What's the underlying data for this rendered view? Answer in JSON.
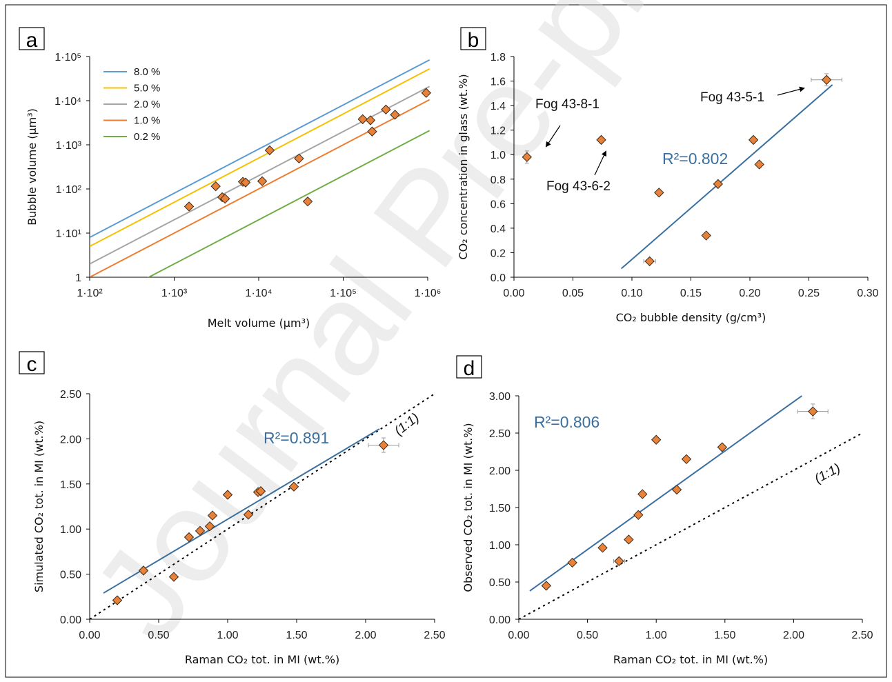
{
  "figure": {
    "watermark": "Journal Pre-proof",
    "colors": {
      "point_fill": "#e8823a",
      "fit_line": "#3a6f9f",
      "r2_text": "#3a6f9f",
      "one_to_one": "#000000"
    }
  },
  "chart_data": [
    {
      "panel": "a",
      "type": "scatter",
      "xlabel": "Melt volume (µm³)",
      "ylabel": "Bubble volume (µm³)",
      "xscale": "log",
      "yscale": "log",
      "xlim": [
        100,
        1000000
      ],
      "ylim": [
        1,
        100000
      ],
      "xticks": [
        {
          "v": 100,
          "label": "1·10²"
        },
        {
          "v": 1000,
          "label": "1·10³"
        },
        {
          "v": 10000,
          "label": "1·10⁴"
        },
        {
          "v": 100000,
          "label": "1·10⁵"
        },
        {
          "v": 1000000,
          "label": "1·10⁶"
        }
      ],
      "yticks": [
        {
          "v": 1,
          "label": "1"
        },
        {
          "v": 10,
          "label": "1·10¹"
        },
        {
          "v": 100,
          "label": "1·10²"
        },
        {
          "v": 1000,
          "label": "1·10³"
        },
        {
          "v": 10000,
          "label": "1·10⁴"
        },
        {
          "v": 100000,
          "label": "1·10⁵"
        }
      ],
      "legend_position": "top-left",
      "lines": [
        {
          "name": "8.0 %",
          "fraction": 0.08,
          "color": "#5b9bd5"
        },
        {
          "name": "5.0 %",
          "fraction": 0.05,
          "color": "#f5c000"
        },
        {
          "name": "2.0 %",
          "fraction": 0.02,
          "color": "#a5a5a5"
        },
        {
          "name": "1.0 %",
          "fraction": 0.01,
          "color": "#ed7d31"
        },
        {
          "name": "0.2 %",
          "fraction": 0.002,
          "color": "#70ad47"
        }
      ],
      "points": [
        {
          "x": 1500,
          "y": 40
        },
        {
          "x": 3100,
          "y": 115
        },
        {
          "x": 3700,
          "y": 65
        },
        {
          "x": 4000,
          "y": 60
        },
        {
          "x": 6500,
          "y": 145
        },
        {
          "x": 7000,
          "y": 140
        },
        {
          "x": 11000,
          "y": 150
        },
        {
          "x": 13500,
          "y": 750
        },
        {
          "x": 30000,
          "y": 490
        },
        {
          "x": 38000,
          "y": 52
        },
        {
          "x": 170000,
          "y": 3800
        },
        {
          "x": 210000,
          "y": 3600
        },
        {
          "x": 220000,
          "y": 2000
        },
        {
          "x": 320000,
          "y": 6300
        },
        {
          "x": 410000,
          "y": 4800
        },
        {
          "x": 960000,
          "y": 15000
        }
      ]
    },
    {
      "panel": "b",
      "type": "scatter",
      "xlabel": "CO₂ bubble density (g/cm³)",
      "ylabel": "CO₂ concentration in glass (wt.%)",
      "xlim": [
        0,
        0.3
      ],
      "ylim": [
        0,
        1.8
      ],
      "xticks": [
        {
          "v": 0,
          "label": "0.00"
        },
        {
          "v": 0.05,
          "label": "0.05"
        },
        {
          "v": 0.1,
          "label": "0.10"
        },
        {
          "v": 0.15,
          "label": "0.15"
        },
        {
          "v": 0.2,
          "label": "0.20"
        },
        {
          "v": 0.25,
          "label": "0.25"
        },
        {
          "v": 0.3,
          "label": "0.30"
        }
      ],
      "yticks": [
        {
          "v": 0,
          "label": "0.0"
        },
        {
          "v": 0.2,
          "label": "0.2"
        },
        {
          "v": 0.4,
          "label": "0.4"
        },
        {
          "v": 0.6,
          "label": "0.6"
        },
        {
          "v": 0.8,
          "label": "0.8"
        },
        {
          "v": 1.0,
          "label": "1.0"
        },
        {
          "v": 1.2,
          "label": "1.2"
        },
        {
          "v": 1.4,
          "label": "1.4"
        },
        {
          "v": 1.6,
          "label": "1.6"
        },
        {
          "v": 1.8,
          "label": "1.8"
        }
      ],
      "fit": {
        "x": [
          0.091,
          0.27
        ],
        "y": [
          0.07,
          1.57
        ]
      },
      "r2": "R²=0.802",
      "points": [
        {
          "x": 0.011,
          "y": 0.98,
          "yerr": 0.05
        },
        {
          "x": 0.074,
          "y": 1.12
        },
        {
          "x": 0.115,
          "y": 0.13,
          "xerr": 0.005
        },
        {
          "x": 0.123,
          "y": 0.69
        },
        {
          "x": 0.163,
          "y": 0.34
        },
        {
          "x": 0.173,
          "y": 0.76
        },
        {
          "x": 0.203,
          "y": 1.12
        },
        {
          "x": 0.208,
          "y": 0.92
        },
        {
          "x": 0.265,
          "y": 1.61,
          "xerr": 0.013,
          "yerr": 0.05
        }
      ],
      "annotations": [
        "Fog 43-8-1",
        "Fog 43-6-2",
        "Fog 43-5-1"
      ]
    },
    {
      "panel": "c",
      "type": "scatter",
      "xlabel": "Raman CO₂ tot. in MI (wt.%)",
      "ylabel": "Simulated CO₂ tot. in MI (wt.%)",
      "xlim": [
        0,
        2.5
      ],
      "ylim": [
        0,
        2.5
      ],
      "xticks": [
        {
          "v": 0,
          "label": "0.00"
        },
        {
          "v": 0.5,
          "label": "0.50"
        },
        {
          "v": 1,
          "label": "1.00"
        },
        {
          "v": 1.5,
          "label": "1.50"
        },
        {
          "v": 2,
          "label": "2.00"
        },
        {
          "v": 2.5,
          "label": "2.50"
        }
      ],
      "yticks": [
        {
          "v": 0,
          "label": "0.00"
        },
        {
          "v": 0.5,
          "label": "0.50"
        },
        {
          "v": 1,
          "label": "1.00"
        },
        {
          "v": 1.5,
          "label": "1.50"
        },
        {
          "v": 2,
          "label": "2.00"
        },
        {
          "v": 2.5,
          "label": "2.50"
        }
      ],
      "fit": {
        "x": [
          0.1,
          2.1
        ],
        "y": [
          0.29,
          2.11
        ]
      },
      "one_to_one_label": "(1:1)",
      "r2": "R²=0.891",
      "points": [
        {
          "x": 0.2,
          "y": 0.21
        },
        {
          "x": 0.39,
          "y": 0.54
        },
        {
          "x": 0.61,
          "y": 0.47
        },
        {
          "x": 0.72,
          "y": 0.91
        },
        {
          "x": 0.8,
          "y": 0.98
        },
        {
          "x": 0.87,
          "y": 1.03
        },
        {
          "x": 0.89,
          "y": 1.15
        },
        {
          "x": 1.0,
          "y": 1.38
        },
        {
          "x": 1.15,
          "y": 1.16
        },
        {
          "x": 1.22,
          "y": 1.41
        },
        {
          "x": 1.24,
          "y": 1.42
        },
        {
          "x": 1.48,
          "y": 1.47
        },
        {
          "x": 2.13,
          "y": 1.93,
          "xerr": 0.11,
          "yerr": 0.08
        }
      ]
    },
    {
      "panel": "d",
      "type": "scatter",
      "xlabel": "Raman CO₂ tot. in MI (wt.%)",
      "ylabel": "Observed CO₂ tot. in MI (wt.%)",
      "xlim": [
        0,
        2.5
      ],
      "ylim": [
        0,
        3.0
      ],
      "xticks": [
        {
          "v": 0,
          "label": "0.00"
        },
        {
          "v": 0.5,
          "label": "0.50"
        },
        {
          "v": 1,
          "label": "1.00"
        },
        {
          "v": 1.5,
          "label": "1.50"
        },
        {
          "v": 2,
          "label": "2.00"
        },
        {
          "v": 2.5,
          "label": "2.50"
        }
      ],
      "yticks": [
        {
          "v": 0,
          "label": "0.00"
        },
        {
          "v": 0.5,
          "label": "0.50"
        },
        {
          "v": 1,
          "label": "1.00"
        },
        {
          "v": 1.5,
          "label": "1.50"
        },
        {
          "v": 2,
          "label": "2.00"
        },
        {
          "v": 2.5,
          "label": "2.50"
        },
        {
          "v": 3,
          "label": "3.00"
        }
      ],
      "fit": {
        "x": [
          0.08,
          2.06
        ],
        "y": [
          0.38,
          3.0
        ]
      },
      "one_to_one_label": "(1:1)",
      "r2": "R²=0.806",
      "points": [
        {
          "x": 0.2,
          "y": 0.45
        },
        {
          "x": 0.39,
          "y": 0.76
        },
        {
          "x": 0.61,
          "y": 0.96
        },
        {
          "x": 0.73,
          "y": 0.78,
          "xerr": 0.04
        },
        {
          "x": 0.8,
          "y": 1.07
        },
        {
          "x": 0.87,
          "y": 1.4
        },
        {
          "x": 0.9,
          "y": 1.68
        },
        {
          "x": 1.0,
          "y": 2.41
        },
        {
          "x": 1.15,
          "y": 1.74
        },
        {
          "x": 1.22,
          "y": 2.15
        },
        {
          "x": 1.48,
          "y": 2.31
        },
        {
          "x": 2.14,
          "y": 2.79,
          "xerr": 0.11,
          "yerr": 0.1
        }
      ]
    }
  ]
}
